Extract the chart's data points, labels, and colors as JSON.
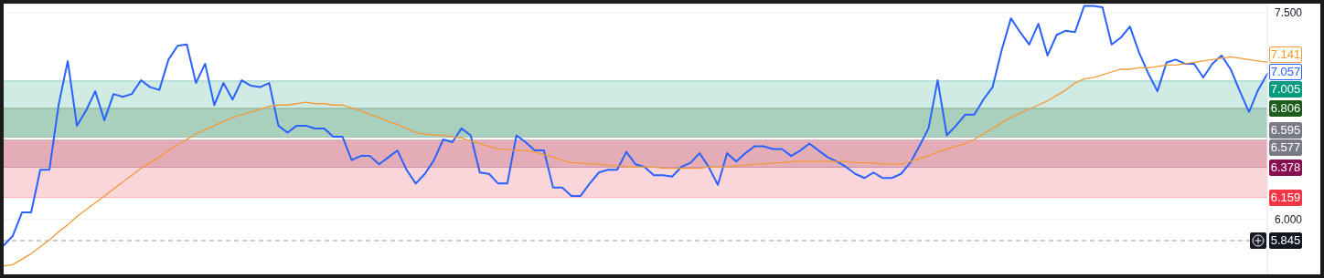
{
  "chart_data": {
    "type": "line",
    "categories": [
      null,
      null,
      null,
      null,
      null,
      null,
      null,
      null,
      null,
      null,
      null,
      null,
      null,
      null,
      null,
      null,
      null,
      null,
      null,
      null,
      null,
      null,
      null,
      null,
      null,
      null,
      null,
      null,
      null,
      null,
      null,
      null,
      null,
      null,
      null,
      null,
      null,
      null,
      null,
      null,
      null,
      null,
      null,
      null,
      null,
      null,
      null,
      null,
      null,
      null,
      null,
      null,
      null,
      null,
      null,
      null,
      null,
      null,
      null,
      null,
      null,
      null,
      null,
      null,
      null,
      null,
      null,
      null,
      null,
      null,
      null,
      null,
      null,
      null,
      null,
      null,
      null,
      null,
      null,
      null,
      null,
      null,
      null,
      null,
      null,
      null,
      null,
      null,
      null,
      null,
      null,
      null,
      null,
      null,
      null,
      null,
      null,
      null,
      null,
      null,
      null,
      null,
      null,
      null,
      null,
      null,
      null,
      null,
      null,
      null,
      null,
      null,
      null,
      null,
      null,
      null,
      null,
      null,
      null,
      null,
      null,
      null,
      null,
      null,
      null,
      null,
      null,
      null,
      null,
      null,
      null,
      null,
      null,
      null,
      null,
      null,
      null,
      null,
      null
    ],
    "series": [
      {
        "color": "#2962ff",
        "values": [
          5.81,
          5.88,
          6.05,
          6.05,
          6.36,
          6.36,
          6.83,
          7.15,
          6.68,
          6.79,
          6.93,
          6.72,
          6.91,
          6.89,
          6.91,
          7.01,
          6.96,
          6.94,
          7.16,
          7.26,
          7.27,
          6.99,
          7.13,
          6.83,
          6.99,
          6.87,
          7.01,
          6.97,
          6.96,
          6.99,
          6.68,
          6.63,
          6.68,
          6.68,
          6.66,
          6.66,
          6.6,
          6.6,
          6.43,
          6.46,
          6.46,
          6.4,
          6.45,
          6.5,
          6.36,
          6.26,
          6.33,
          6.43,
          6.58,
          6.56,
          6.66,
          6.61,
          6.34,
          6.33,
          6.26,
          6.26,
          6.61,
          6.56,
          6.5,
          6.5,
          6.23,
          6.23,
          6.17,
          6.17,
          6.26,
          6.34,
          6.36,
          6.36,
          6.49,
          6.4,
          6.38,
          6.32,
          6.32,
          6.31,
          6.38,
          6.41,
          6.48,
          6.38,
          6.25,
          6.48,
          6.42,
          6.48,
          6.53,
          6.53,
          6.51,
          6.51,
          6.46,
          6.5,
          6.55,
          6.5,
          6.45,
          6.42,
          6.38,
          6.33,
          6.3,
          6.34,
          6.3,
          6.3,
          6.33,
          6.41,
          6.53,
          6.66,
          7.01,
          6.61,
          6.68,
          6.76,
          6.76,
          6.87,
          6.96,
          7.23,
          7.46,
          7.36,
          7.27,
          7.42,
          7.19,
          7.34,
          7.37,
          7.36,
          7.55,
          7.55,
          7.54,
          7.27,
          7.32,
          7.4,
          7.21,
          7.06,
          6.93,
          7.14,
          7.16,
          7.13,
          7.13,
          7.03,
          7.13,
          7.19,
          7.09,
          6.93,
          6.78,
          6.94,
          7.057
        ],
        "value_labels": [
          null,
          null,
          null,
          null,
          null,
          null,
          null,
          null,
          null,
          null,
          null,
          null,
          null,
          null,
          null,
          null,
          null,
          null,
          null,
          null,
          null,
          null,
          null,
          null,
          null,
          null,
          null,
          null,
          null,
          null,
          null,
          null,
          null,
          null,
          null,
          null,
          null,
          null,
          null,
          null,
          null,
          null,
          null,
          null,
          null,
          null,
          null,
          null,
          null,
          null,
          null,
          null,
          null,
          null,
          null,
          null,
          null,
          null,
          null,
          null,
          null,
          null,
          null,
          null,
          null,
          null,
          null,
          null,
          null,
          null,
          null,
          null,
          null,
          null,
          null,
          null,
          null,
          null,
          null,
          null,
          null,
          null,
          null,
          null,
          null,
          null,
          null,
          null,
          null,
          null,
          null,
          null,
          null,
          null,
          null,
          null,
          null,
          null,
          null,
          null,
          null,
          null,
          null,
          null,
          null,
          null,
          null,
          null,
          null,
          null,
          null,
          null,
          null,
          null,
          null,
          null,
          null,
          null,
          null,
          null,
          null,
          null,
          null,
          null,
          null,
          null,
          null,
          null,
          null,
          null,
          null,
          null,
          null,
          null,
          null,
          null,
          null,
          null,
          "7.057"
        ]
      },
      {
        "color": "#f29a38",
        "values": [
          5.66,
          5.67,
          5.71,
          5.75,
          5.8,
          5.85,
          5.91,
          5.96,
          6.02,
          6.07,
          6.12,
          6.17,
          6.22,
          6.27,
          6.32,
          6.37,
          6.41,
          6.45,
          6.5,
          6.54,
          6.58,
          6.62,
          6.65,
          6.68,
          6.71,
          6.74,
          6.76,
          6.78,
          6.8,
          6.82,
          6.83,
          6.83,
          6.84,
          6.85,
          6.84,
          6.84,
          6.83,
          6.83,
          6.81,
          6.79,
          6.76,
          6.74,
          6.71,
          6.69,
          6.66,
          6.63,
          6.62,
          6.61,
          6.61,
          6.6,
          6.59,
          6.57,
          6.55,
          6.53,
          6.51,
          6.51,
          6.5,
          6.5,
          6.49,
          6.47,
          6.45,
          6.43,
          6.41,
          6.41,
          6.4,
          6.4,
          6.39,
          6.39,
          6.38,
          6.38,
          6.38,
          6.38,
          6.37,
          6.37,
          6.37,
          6.37,
          6.37,
          6.38,
          6.38,
          6.38,
          6.39,
          6.39,
          6.4,
          6.4,
          6.41,
          6.41,
          6.42,
          6.42,
          6.42,
          6.42,
          6.42,
          6.42,
          6.42,
          6.41,
          6.41,
          6.41,
          6.4,
          6.4,
          6.4,
          6.42,
          6.44,
          6.46,
          6.49,
          6.51,
          6.53,
          6.55,
          6.58,
          6.62,
          6.66,
          6.7,
          6.74,
          6.77,
          6.8,
          6.83,
          6.86,
          6.9,
          6.94,
          6.99,
          7.02,
          7.03,
          7.05,
          7.07,
          7.09,
          7.09,
          7.1,
          7.1,
          7.11,
          7.12,
          7.12,
          7.13,
          7.14,
          7.15,
          7.16,
          7.17,
          7.18,
          7.17,
          7.16,
          7.15,
          7.141
        ],
        "value_labels": [
          null,
          null,
          null,
          null,
          null,
          null,
          null,
          null,
          null,
          null,
          null,
          null,
          null,
          null,
          null,
          null,
          null,
          null,
          null,
          null,
          null,
          null,
          null,
          null,
          null,
          null,
          null,
          null,
          null,
          null,
          null,
          null,
          null,
          null,
          null,
          null,
          null,
          null,
          null,
          null,
          null,
          null,
          null,
          null,
          null,
          null,
          null,
          null,
          null,
          null,
          null,
          null,
          null,
          null,
          null,
          null,
          null,
          null,
          null,
          null,
          null,
          null,
          null,
          null,
          null,
          null,
          null,
          null,
          null,
          null,
          null,
          null,
          null,
          null,
          null,
          null,
          null,
          null,
          null,
          null,
          null,
          null,
          null,
          null,
          null,
          null,
          null,
          null,
          null,
          null,
          null,
          null,
          null,
          null,
          null,
          null,
          null,
          null,
          null,
          null,
          null,
          null,
          null,
          null,
          null,
          null,
          null,
          null,
          null,
          null,
          null,
          null,
          null,
          null,
          null,
          null,
          null,
          null,
          null,
          null,
          null,
          null,
          null,
          null,
          null,
          null,
          null,
          null,
          null,
          null,
          null,
          null,
          null,
          null,
          null,
          null,
          null,
          null,
          "7.141"
        ]
      }
    ],
    "ylim": [
      5.6,
      7.56
    ],
    "yticks": [
      {
        "value": 6.0,
        "label": "6.000"
      },
      {
        "value": 7.5,
        "label": "7.500"
      }
    ],
    "tick_labels": "y",
    "grid": "y",
    "bands": [
      {
        "axis": "y",
        "from": 6.806,
        "to": 7.005,
        "color": "#d0eae4"
      },
      {
        "axis": "y",
        "from": 6.595,
        "to": 6.806,
        "color": "#a9cfbd"
      },
      {
        "axis": "y",
        "from": 6.378,
        "to": 6.577,
        "color": "#e3acb7"
      },
      {
        "axis": "y",
        "from": 6.159,
        "to": 6.378,
        "color": "#fad6da"
      }
    ],
    "ref_lines": [
      {
        "axis": "y",
        "value": 7.005,
        "label": "7.005",
        "color": "#089981"
      },
      {
        "axis": "y",
        "value": 6.806,
        "label": "6.806",
        "color": "#1e5c1e"
      },
      {
        "axis": "y",
        "value": 6.595,
        "label": "6.595",
        "color": "#787b86"
      },
      {
        "axis": "y",
        "value": 6.577,
        "label": "6.577",
        "color": "#787b86"
      },
      {
        "axis": "y",
        "value": 6.378,
        "label": "6.378",
        "color": "#880e4f"
      },
      {
        "axis": "y",
        "value": 6.159,
        "label": "6.159",
        "color": "#f23645"
      },
      {
        "axis": "y",
        "value": 5.845,
        "label": "5.845",
        "color": "#131722",
        "line_style": "dashed"
      }
    ]
  }
}
